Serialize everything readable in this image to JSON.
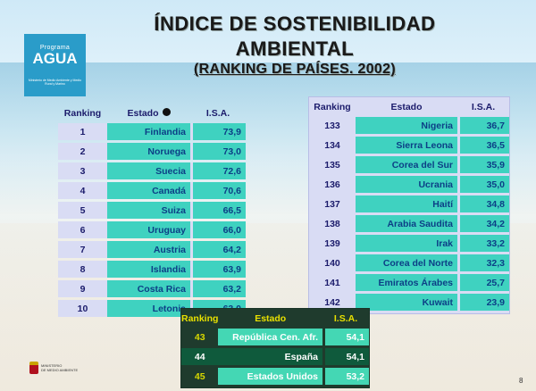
{
  "logo": {
    "line1": "Programa",
    "line2": "AGUA",
    "line3": "Ministerio de Medio Ambiente y Medio Rural y Marino"
  },
  "title": {
    "line1": "ÍNDICE DE SOSTENIBILIDAD",
    "line2": "AMBIENTAL",
    "line3": "(RANKING DE PAÍSES. 2002)"
  },
  "headers": {
    "ranking": "Ranking",
    "estado": "Estado",
    "isa": "I.S.A."
  },
  "left_rows": [
    {
      "rank": "1",
      "country": "Finlandia",
      "isa": "73,9"
    },
    {
      "rank": "2",
      "country": "Noruega",
      "isa": "73,0"
    },
    {
      "rank": "3",
      "country": "Suecia",
      "isa": "72,6"
    },
    {
      "rank": "4",
      "country": "Canadá",
      "isa": "70,6"
    },
    {
      "rank": "5",
      "country": "Suiza",
      "isa": "66,5"
    },
    {
      "rank": "6",
      "country": "Uruguay",
      "isa": "66,0"
    },
    {
      "rank": "7",
      "country": "Austria",
      "isa": "64,2"
    },
    {
      "rank": "8",
      "country": "Islandia",
      "isa": "63,9"
    },
    {
      "rank": "9",
      "country": "Costa Rica",
      "isa": "63,2"
    },
    {
      "rank": "10",
      "country": "Letonia",
      "isa": "63,0"
    }
  ],
  "right_rows": [
    {
      "rank": "133",
      "country": "Nigeria",
      "isa": "36,7"
    },
    {
      "rank": "134",
      "country": "Sierra Leona",
      "isa": "36,5"
    },
    {
      "rank": "135",
      "country": "Corea del Sur",
      "isa": "35,9"
    },
    {
      "rank": "136",
      "country": "Ucrania",
      "isa": "35,0"
    },
    {
      "rank": "137",
      "country": "Haití",
      "isa": "34,8"
    },
    {
      "rank": "138",
      "country": "Arabia Saudita",
      "isa": "34,2"
    },
    {
      "rank": "139",
      "country": "Irak",
      "isa": "33,2"
    },
    {
      "rank": "140",
      "country": "Corea del Norte",
      "isa": "32,3"
    },
    {
      "rank": "141",
      "country": "Emiratos Árabes",
      "isa": "25,7"
    },
    {
      "rank": "142",
      "country": "Kuwait",
      "isa": "23,9"
    }
  ],
  "bottom_rows": [
    {
      "rank": "43",
      "country": "República Cen. Afr.",
      "isa": "54,1"
    },
    {
      "rank": "44",
      "country": "España",
      "isa": "54,1"
    },
    {
      "rank": "45",
      "country": "Estados Unidos",
      "isa": "53,2"
    }
  ],
  "ministry": {
    "line1": "MINISTERIO",
    "line2": "DE MEDIO AMBIENTE"
  },
  "page_number": "8",
  "colors": {
    "row_fill": "#3fd2c0",
    "panel": "#d9dcf4",
    "text_blue": "#0c3f86",
    "highlight": "#0f5a3c"
  }
}
